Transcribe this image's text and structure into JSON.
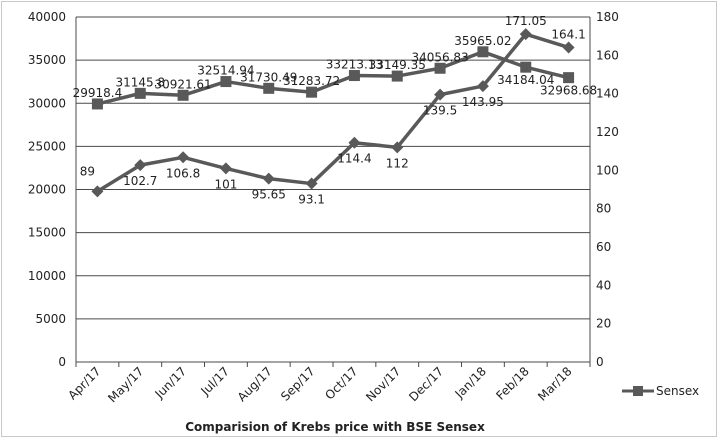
{
  "chart_data": {
    "type": "line",
    "title": "Comparision of Krebs price with BSE Sensex",
    "categories": [
      "Apr/17",
      "May/17",
      "Jun/17",
      "Jul/17",
      "Aug/17",
      "Sep/17",
      "Oct/17",
      "Nov/17",
      "Dec/17",
      "Jan/18",
      "Feb/18",
      "Mar/18"
    ],
    "series": [
      {
        "name": "Sensex",
        "axis": "left",
        "color": "#595959",
        "values": [
          29918.4,
          31145.8,
          30921.61,
          32514.94,
          31730.49,
          31283.72,
          33213.13,
          33149.35,
          34056.83,
          35965.02,
          34184.04,
          32968.68
        ],
        "labels": [
          "29918.4",
          "31145.8",
          "30921.61",
          "32514.94",
          "31730.49",
          "31283.72",
          "33213.13",
          "33149.35",
          "34056.83",
          "35965.02",
          "34184.04",
          "32968.68"
        ]
      },
      {
        "name": "",
        "axis": "right",
        "color": "#595959",
        "values": [
          89,
          102.7,
          106.8,
          101,
          95.65,
          93.1,
          114.4,
          112,
          139.5,
          143.95,
          171.05,
          164.1
        ],
        "labels": [
          "89",
          "102.7",
          "106.8",
          "101",
          "95.65",
          "93.1",
          "114.4",
          "112",
          "139.5",
          "143.95",
          "171.05",
          "164.1"
        ]
      }
    ],
    "y_left": {
      "min": 0,
      "max": 40000,
      "step": 5000,
      "ticks": [
        "0",
        "5000",
        "10000",
        "15000",
        "20000",
        "25000",
        "30000",
        "35000",
        "40000"
      ]
    },
    "y_right": {
      "min": 0,
      "max": 180,
      "step": 20,
      "ticks": [
        "0",
        "20",
        "40",
        "60",
        "80",
        "100",
        "120",
        "140",
        "160",
        "180"
      ]
    },
    "grid": true,
    "legend": {
      "position": "right",
      "entries": [
        "Sensex"
      ]
    }
  }
}
